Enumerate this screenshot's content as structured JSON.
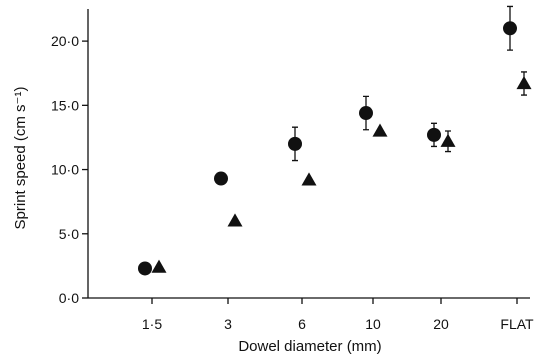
{
  "chart_data": {
    "type": "scatter",
    "xlabel": "Dowel diameter (mm)",
    "ylabel": "Sprint speed (cm s⁻¹)",
    "categories": [
      "1·5",
      "3",
      "6",
      "10",
      "20",
      "FLAT"
    ],
    "ylim": [
      0,
      22.5
    ],
    "yticks": [
      0,
      5,
      10,
      15,
      20
    ],
    "ytick_labels": [
      "0·0",
      "5·0",
      "10·0",
      "15·0",
      "20·0"
    ],
    "grid": false,
    "legend": "none",
    "series": [
      {
        "marker": "circle",
        "color": "#111111",
        "values": [
          2.3,
          9.3,
          12.0,
          14.4,
          12.7,
          21.0
        ],
        "err_up": [
          0,
          0,
          1.3,
          1.3,
          0.9,
          1.7
        ],
        "err_down": [
          0,
          0,
          1.3,
          1.3,
          0.9,
          1.7
        ]
      },
      {
        "marker": "triangle",
        "color": "#111111",
        "values": [
          2.4,
          6.0,
          9.2,
          13.0,
          12.2,
          16.7
        ],
        "err_up": [
          0,
          0,
          0,
          0,
          0.8,
          0.9
        ],
        "err_down": [
          0,
          0,
          0,
          0,
          0.8,
          0.9
        ]
      }
    ]
  }
}
